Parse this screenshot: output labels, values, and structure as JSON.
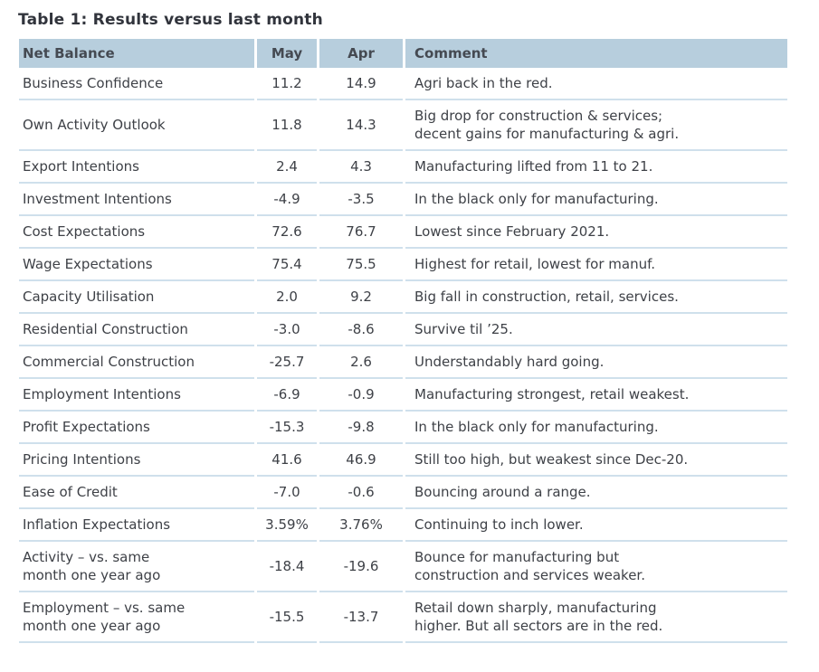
{
  "title": "Table 1: Results versus last month",
  "colors": {
    "header_bg": "#b7cedd",
    "row_separator": "#cfe0ec",
    "body_text": "#3e4147",
    "header_text": "#454a52",
    "title_text": "#31343c"
  },
  "chart_data": {
    "type": "table",
    "title": "Table 1: Results versus last month",
    "columns": [
      "Net Balance",
      "May",
      "Apr",
      "Comment"
    ],
    "rows": [
      {
        "label": "Business Confidence",
        "may": "11.2",
        "apr": "14.9",
        "comment": "Agri back in the red."
      },
      {
        "label": "Own Activity Outlook",
        "may": "11.8",
        "apr": "14.3",
        "comment": "Big drop for construction & services;\ndecent gains for manufacturing & agri."
      },
      {
        "label": "Export Intentions",
        "may": "2.4",
        "apr": "4.3",
        "comment": "Manufacturing lifted from 11 to 21."
      },
      {
        "label": "Investment Intentions",
        "may": "-4.9",
        "apr": "-3.5",
        "comment": "In the black only for manufacturing."
      },
      {
        "label": "Cost Expectations",
        "may": "72.6",
        "apr": "76.7",
        "comment": "Lowest since February 2021."
      },
      {
        "label": "Wage Expectations",
        "may": "75.4",
        "apr": "75.5",
        "comment": "Highest for retail, lowest for manuf."
      },
      {
        "label": "Capacity Utilisation",
        "may": "2.0",
        "apr": "9.2",
        "comment": "Big fall in construction, retail, services."
      },
      {
        "label": "Residential Construction",
        "may": "-3.0",
        "apr": "-8.6",
        "comment": "Survive til ’25."
      },
      {
        "label": "Commercial Construction",
        "may": "-25.7",
        "apr": "2.6",
        "comment": "Understandably hard going."
      },
      {
        "label": "Employment Intentions",
        "may": "-6.9",
        "apr": "-0.9",
        "comment": "Manufacturing strongest, retail weakest."
      },
      {
        "label": "Profit Expectations",
        "may": "-15.3",
        "apr": "-9.8",
        "comment": "In the black only for manufacturing."
      },
      {
        "label": "Pricing Intentions",
        "may": "41.6",
        "apr": "46.9",
        "comment": "Still too high, but weakest since Dec-20."
      },
      {
        "label": "Ease of Credit",
        "may": "-7.0",
        "apr": "-0.6",
        "comment": "Bouncing around a range."
      },
      {
        "label": "Inflation Expectations",
        "may": "3.59%",
        "apr": "3.76%",
        "comment": "Continuing to inch lower."
      },
      {
        "label": "Activity – vs. same\nmonth one year ago",
        "may": "-18.4",
        "apr": "-19.6",
        "comment": "Bounce for manufacturing but\nconstruction and services weaker."
      },
      {
        "label": "Employment – vs. same\nmonth one year ago",
        "may": "-15.5",
        "apr": "-13.7",
        "comment": "Retail down sharply, manufacturing\nhigher. But all sectors are in the red."
      }
    ]
  }
}
